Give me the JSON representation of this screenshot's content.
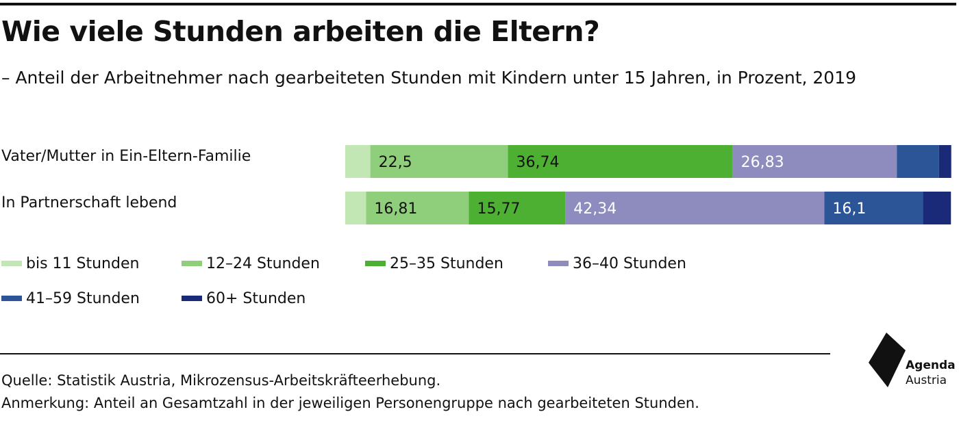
{
  "header": {
    "title": "Wie viele Stunden arbeiten die Eltern?",
    "subtitle": "– Anteil der Arbeitnehmer nach gearbeiteten Stunden mit Kindern unter 15 Jahren, in Prozent, 2019"
  },
  "chart_data": {
    "type": "bar",
    "orientation": "horizontal",
    "stacked": true,
    "categories": [
      "Vater/Mutter in Ein-Eltern-Familie",
      "In Partnerschaft lebend"
    ],
    "series": [
      {
        "name": "bis 11 Stunden",
        "color": "#c3e6b5",
        "values": [
          4.1,
          3.4
        ],
        "labels": [
          "",
          ""
        ]
      },
      {
        "name": "12–24 Stunden",
        "color": "#8fcf7b",
        "values": [
          22.5,
          16.81
        ],
        "labels": [
          "22,5",
          "16,81"
        ]
      },
      {
        "name": "25–35 Stunden",
        "color": "#4eb033",
        "values": [
          36.74,
          15.77
        ],
        "labels": [
          "36,74",
          "15,77"
        ]
      },
      {
        "name": "36–40 Stunden",
        "color": "#8e8cbe",
        "values": [
          26.83,
          42.34
        ],
        "labels": [
          "26,83",
          "42,34"
        ]
      },
      {
        "name": "41–59 Stunden",
        "color": "#2b5597",
        "values": [
          6.9,
          16.1
        ],
        "labels": [
          "",
          "16,1"
        ]
      },
      {
        "name": "60+ Stunden",
        "color": "#1b2a78",
        "values": [
          2.0,
          4.6
        ],
        "labels": [
          "",
          ""
        ]
      }
    ],
    "xlim": [
      0,
      100
    ],
    "grid": false,
    "legend_position": "bottom"
  },
  "footer": {
    "source": "Quelle: Statistik Austria, Mikrozensus-Arbeitskräfteerhebung.",
    "note": "Anmerkung: Anteil an Gesamtzahl in der jeweiligen Personengruppe nach gearbeiteten Stunden."
  },
  "logo": {
    "line1": "Agenda",
    "line2": "Austria"
  }
}
